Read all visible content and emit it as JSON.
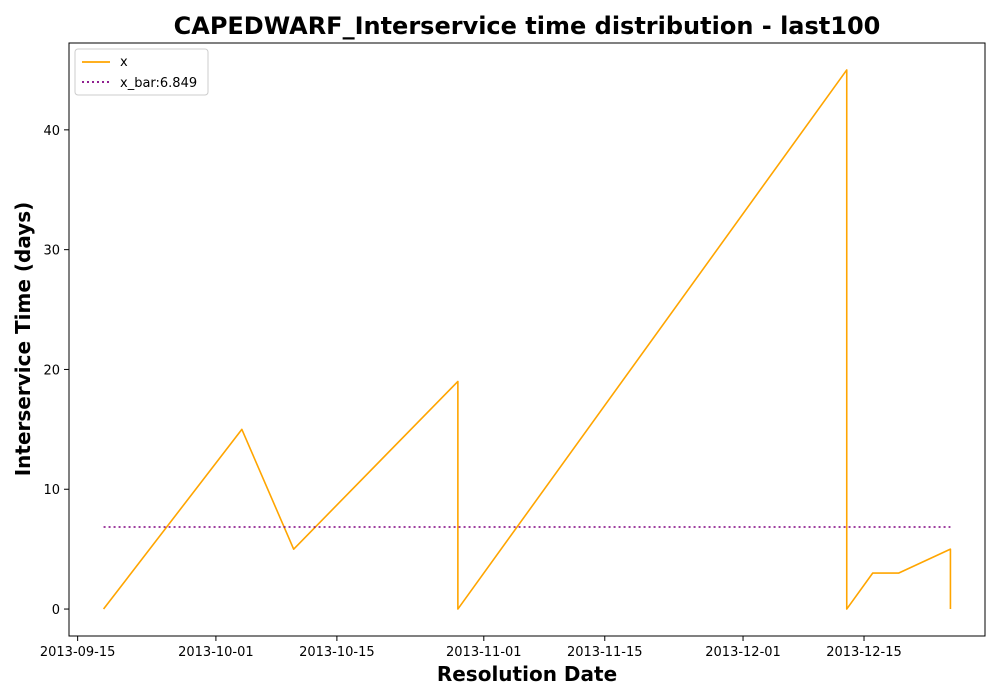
{
  "chart_data": {
    "type": "line",
    "title": "CAPEDWARF_Interservice time distribution - last100",
    "xlabel": "Resolution Date",
    "ylabel": "Interservice Time (days)",
    "x_ticks": [
      "2013-09-15",
      "2013-10-01",
      "2013-10-15",
      "2013-11-01",
      "2013-11-15",
      "2013-12-01",
      "2013-12-15"
    ],
    "y_ticks": [
      0,
      10,
      20,
      30,
      40
    ],
    "xlim": [
      "2013-09-14",
      "2013-12-29"
    ],
    "ylim": [
      -2.25,
      47.25
    ],
    "grid": false,
    "legend_position": "top-left",
    "series": [
      {
        "name": "x",
        "color": "#ffa500",
        "style": "solid",
        "points": [
          {
            "x": "2013-09-18",
            "y": 0
          },
          {
            "x": "2013-10-04",
            "y": 15
          },
          {
            "x": "2013-10-10",
            "y": 5
          },
          {
            "x": "2013-10-29",
            "y": 19
          },
          {
            "x": "2013-10-29",
            "y": 0
          },
          {
            "x": "2013-12-13",
            "y": 45
          },
          {
            "x": "2013-12-13",
            "y": 0
          },
          {
            "x": "2013-12-16",
            "y": 3
          },
          {
            "x": "2013-12-19",
            "y": 3
          },
          {
            "x": "2013-12-25",
            "y": 5
          },
          {
            "x": "2013-12-25",
            "y": 0
          }
        ]
      },
      {
        "name": "x_bar:6.849",
        "color": "#800080",
        "style": "dotted",
        "points": [
          {
            "x": "2013-09-18",
            "y": 6.849
          },
          {
            "x": "2013-12-25",
            "y": 6.849
          }
        ]
      }
    ]
  }
}
